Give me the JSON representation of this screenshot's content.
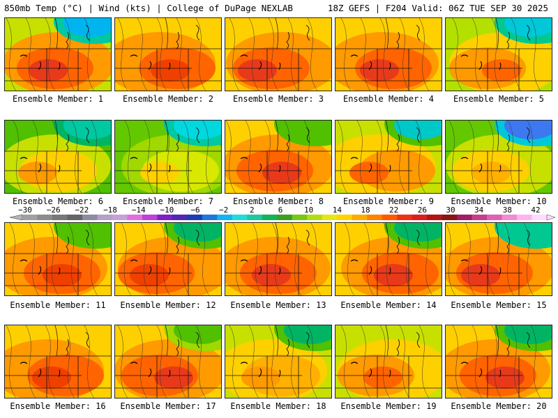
{
  "header": {
    "left": "850mb Temp (°C) | Wind (kts) | College of DuPage NEXLAB",
    "right": "18Z GEFS | F204 Valid: 06Z TUE SEP 30 2025"
  },
  "member_prefix": "Ensemble Member: ",
  "members": [
    {
      "label": "Ensemble Member: 1",
      "palette": [
        "#c8e000",
        "#ff9a00",
        "#ff6400",
        "#e83a1a"
      ],
      "cold": [
        "#00c8a0",
        "#00b4f0"
      ]
    },
    {
      "label": "Ensemble Member: 2",
      "palette": [
        "#ffd000",
        "#ff9a00",
        "#ff6400",
        "#f04000"
      ],
      "cold": []
    },
    {
      "label": "Ensemble Member: 3",
      "palette": [
        "#ffd000",
        "#ff9a00",
        "#ff6400",
        "#e83a1a"
      ],
      "cold": []
    },
    {
      "label": "Ensemble Member: 4",
      "palette": [
        "#ffd000",
        "#ff9a00",
        "#ff6400",
        "#e83a1a"
      ],
      "cold": []
    },
    {
      "label": "Ensemble Member: 5",
      "palette": [
        "#b4e000",
        "#ffd000",
        "#ff9a00",
        "#ff6400"
      ],
      "cold": [
        "#00c890",
        "#00c8d8"
      ]
    },
    {
      "label": "Ensemble Member: 6",
      "palette": [
        "#50c000",
        "#c8e000",
        "#ffd000",
        "#ff9a00"
      ],
      "cold": [
        "#00b464",
        "#00c8a0"
      ]
    },
    {
      "label": "Ensemble Member: 7",
      "palette": [
        "#64c800",
        "#a0d800",
        "#d8e800",
        "#ffd000"
      ],
      "cold": [
        "#00c8a0",
        "#00d8e0"
      ]
    },
    {
      "label": "Ensemble Member: 8",
      "palette": [
        "#ffd000",
        "#ff9a00",
        "#ff6400",
        "#e83a1a"
      ],
      "cold": [
        "#50c000"
      ]
    },
    {
      "label": "Ensemble Member: 9",
      "palette": [
        "#c8e000",
        "#ffd000",
        "#ff9a00",
        "#ff6400"
      ],
      "cold": [
        "#50c000",
        "#00c8c8"
      ]
    },
    {
      "label": "Ensemble Member: 10",
      "palette": [
        "#64c800",
        "#c8e000",
        "#ffd000",
        "#ffb000"
      ],
      "cold": [
        "#00c8d8",
        "#3c78f0"
      ]
    },
    {
      "label": "Ensemble Member: 11",
      "palette": [
        "#ffd000",
        "#ff9a00",
        "#ff6400",
        "#f04000"
      ],
      "cold": [
        "#50c000"
      ]
    },
    {
      "label": "Ensemble Member: 12",
      "palette": [
        "#ffd000",
        "#ff9a00",
        "#ff6400",
        "#f04000"
      ],
      "cold": [
        "#50c000",
        "#00b464"
      ]
    },
    {
      "label": "Ensemble Member: 13",
      "palette": [
        "#ffd000",
        "#ff9a00",
        "#ff6400",
        "#e83a1a"
      ],
      "cold": []
    },
    {
      "label": "Ensemble Member: 14",
      "palette": [
        "#ffd000",
        "#ff9a00",
        "#ff6400",
        "#e83a1a"
      ],
      "cold": [
        "#50c000",
        "#00b464"
      ]
    },
    {
      "label": "Ensemble Member: 15",
      "palette": [
        "#ffd000",
        "#ff9a00",
        "#ff6400",
        "#e83a1a"
      ],
      "cold": [
        "#00c890"
      ]
    },
    {
      "label": "Ensemble Member: 16",
      "palette": [
        "#ffd000",
        "#ff9a00",
        "#ff6400",
        "#f04000"
      ],
      "cold": []
    },
    {
      "label": "Ensemble Member: 17",
      "palette": [
        "#ffd000",
        "#ff9a00",
        "#ff6400",
        "#e83a1a"
      ],
      "cold": [
        "#a0d800",
        "#50c000"
      ]
    },
    {
      "label": "Ensemble Member: 18",
      "palette": [
        "#c8e000",
        "#ffd000",
        "#ffb000",
        "#ff9a00"
      ],
      "cold": [
        "#50c000",
        "#00b464"
      ]
    },
    {
      "label": "Ensemble Member: 19",
      "palette": [
        "#c8e000",
        "#ffd000",
        "#ff9a00",
        "#ff6400"
      ],
      "cold": []
    },
    {
      "label": "Ensemble Member: 20",
      "palette": [
        "#ffd000",
        "#ff9a00",
        "#ff6400",
        "#e83a1a"
      ],
      "cold": [
        "#50c000",
        "#00b464"
      ]
    }
  ],
  "colorbar": {
    "ticks": [
      "−30",
      "−26",
      "−22",
      "−18",
      "−14",
      "−10",
      "−6",
      "−2",
      "2",
      "6",
      "10",
      "14",
      "18",
      "22",
      "26",
      "30",
      "34",
      "38",
      "42"
    ],
    "colors": [
      "#a0a0a0",
      "#8c8c8c",
      "#787878",
      "#646464",
      "#8c8ca0",
      "#b4a0c8",
      "#c8a0d8",
      "#e070e0",
      "#c040d8",
      "#8020c8",
      "#5028b4",
      "#1e3cb4",
      "#1e78e0",
      "#14b4f0",
      "#1edcdc",
      "#1ec8a0",
      "#14b45a",
      "#3ca01e",
      "#78c814",
      "#b4dc14",
      "#e6e614",
      "#ffd200",
      "#ffaa00",
      "#ff8200",
      "#ff5a00",
      "#f03214",
      "#dc1e1e",
      "#b41414",
      "#8c1414",
      "#a01e64",
      "#c83c8c",
      "#e060b4",
      "#f08cd2",
      "#ffb4f0",
      "#ffdcff"
    ]
  }
}
